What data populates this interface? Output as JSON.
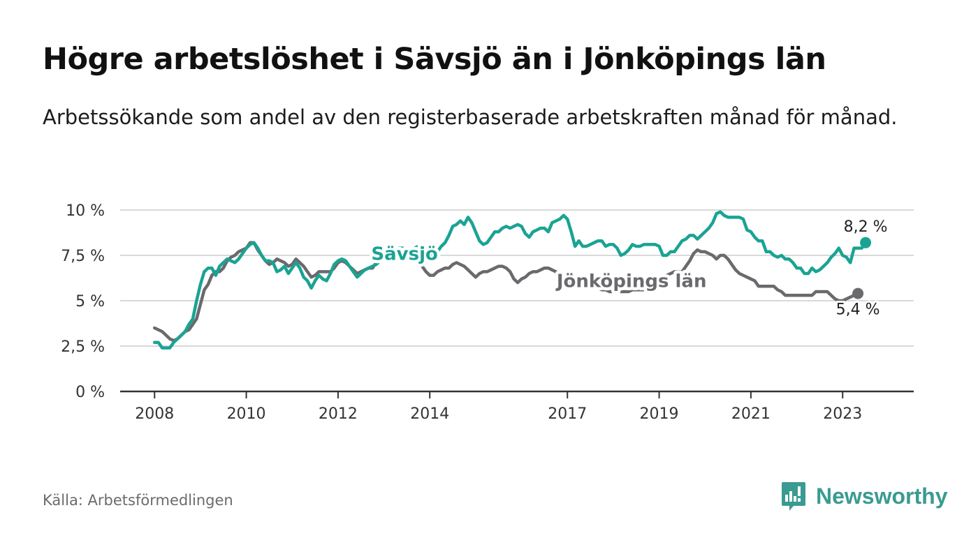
{
  "title": "Högre arbetslöshet i Sävsjö än i Jönköpings län",
  "subtitle": "Arbetssökande som andel av den registerbaserade arbetskraften månad för månad.",
  "source": "Källa: Arbetsförmedlingen",
  "brand": "Newsworthy",
  "colors": {
    "savsjo": "#1aa393",
    "jonkoping": "#6a6a6e",
    "brand": "#3a9b92",
    "grid": "#d9d9d9",
    "axis": "#333333"
  },
  "chart_data": {
    "type": "line",
    "ylim": [
      0,
      10
    ],
    "y_ticks": [
      0,
      2.5,
      5,
      7.5,
      10
    ],
    "y_tick_labels": [
      "0 %",
      "2,5 %",
      "5 %",
      "7,5 %",
      "10 %"
    ],
    "x_ticks": [
      2008,
      2010,
      2012,
      2014,
      2017,
      2019,
      2021,
      2023
    ],
    "x_tick_labels": [
      "2008",
      "2010",
      "2012",
      "2014",
      "2017",
      "2019",
      "2021",
      "2023"
    ],
    "xlim": [
      2007.25,
      2024.55
    ],
    "x_start": 2008.0,
    "x_step": 0.0833333,
    "series": [
      {
        "name": "Sävsjö",
        "label": "Sävsjö",
        "end_label": "8,2 %",
        "values": [
          2.7,
          2.7,
          2.4,
          2.4,
          2.4,
          2.7,
          2.9,
          3.1,
          3.3,
          3.7,
          4.0,
          5.0,
          5.9,
          6.6,
          6.8,
          6.8,
          6.4,
          6.9,
          7.1,
          7.3,
          7.2,
          7.1,
          7.3,
          7.6,
          7.9,
          8.1,
          8.2,
          7.9,
          7.5,
          7.2,
          7.2,
          7.1,
          6.6,
          6.7,
          6.9,
          6.5,
          6.8,
          7.1,
          6.8,
          6.3,
          6.1,
          5.7,
          6.1,
          6.4,
          6.2,
          6.1,
          6.5,
          7.0,
          7.2,
          7.3,
          7.2,
          6.9,
          6.6,
          6.3,
          6.5,
          6.7,
          6.8,
          6.9,
          7.0,
          7.2,
          7.4,
          7.6,
          7.7,
          7.8,
          7.9,
          7.9,
          7.7,
          7.7,
          7.9,
          8.0,
          7.9,
          7.7,
          7.6,
          7.3,
          7.7,
          8.0,
          8.2,
          8.6,
          9.1,
          9.2,
          9.4,
          9.2,
          9.6,
          9.3,
          8.8,
          8.3,
          8.1,
          8.2,
          8.5,
          8.8,
          8.8,
          9.0,
          9.1,
          9.0,
          9.1,
          9.2,
          9.1,
          8.7,
          8.5,
          8.8,
          8.9,
          9.0,
          9.0,
          8.8,
          9.3,
          9.4,
          9.5,
          9.7,
          9.5,
          8.8,
          8.0,
          8.3,
          8.0,
          8.0,
          8.1,
          8.2,
          8.3,
          8.3,
          8.0,
          8.1,
          8.1,
          7.9,
          7.5,
          7.6,
          7.8,
          8.1,
          8.0,
          8.0,
          8.1,
          8.1,
          8.1,
          8.1,
          8.0,
          7.5,
          7.5,
          7.7,
          7.7,
          8.0,
          8.3,
          8.4,
          8.6,
          8.6,
          8.4,
          8.6,
          8.8,
          9.0,
          9.3,
          9.8,
          9.9,
          9.7,
          9.6,
          9.6,
          9.6,
          9.6,
          9.5,
          8.9,
          8.8,
          8.5,
          8.3,
          8.3,
          7.7,
          7.7,
          7.5,
          7.4,
          7.5,
          7.3,
          7.3,
          7.1,
          6.8,
          6.8,
          6.5,
          6.5,
          6.8,
          6.6,
          6.7,
          6.9,
          7.1,
          7.4,
          7.6,
          7.9,
          7.5,
          7.4,
          7.1,
          7.9,
          7.9,
          7.9,
          8.2
        ]
      },
      {
        "name": "Jönköpings län",
        "label": "Jönköpings län",
        "end_label": "5,4 %",
        "values": [
          3.5,
          3.4,
          3.3,
          3.1,
          2.9,
          2.8,
          2.9,
          3.1,
          3.3,
          3.4,
          3.7,
          4.0,
          4.8,
          5.6,
          5.9,
          6.4,
          6.6,
          6.6,
          6.8,
          7.2,
          7.4,
          7.5,
          7.7,
          7.8,
          7.9,
          8.2,
          8.2,
          7.8,
          7.5,
          7.2,
          7.0,
          7.1,
          7.3,
          7.2,
          7.1,
          6.9,
          7.0,
          7.3,
          7.1,
          6.9,
          6.6,
          6.3,
          6.4,
          6.6,
          6.6,
          6.6,
          6.6,
          6.8,
          7.1,
          7.2,
          7.1,
          6.9,
          6.7,
          6.5,
          6.6,
          6.7,
          6.8,
          6.8,
          7.1,
          7.3,
          7.5,
          7.8,
          7.9,
          7.9,
          7.8,
          7.7,
          7.6,
          7.6,
          7.5,
          7.3,
          6.9,
          6.6,
          6.4,
          6.4,
          6.6,
          6.7,
          6.8,
          6.8,
          7.0,
          7.1,
          7.0,
          6.9,
          6.7,
          6.5,
          6.3,
          6.5,
          6.6,
          6.6,
          6.7,
          6.8,
          6.9,
          6.9,
          6.8,
          6.6,
          6.2,
          6.0,
          6.2,
          6.3,
          6.5,
          6.6,
          6.6,
          6.7,
          6.8,
          6.8,
          6.7,
          6.6,
          6.2,
          6.2,
          6.1,
          6.0,
          5.9,
          5.8,
          5.8,
          5.9,
          5.9,
          5.9,
          5.7,
          5.6,
          5.6,
          5.5,
          5.5,
          5.5,
          5.5,
          5.5,
          5.5,
          5.6,
          5.6,
          5.6,
          5.6,
          5.7,
          5.8,
          5.9,
          6.1,
          6.3,
          6.4,
          6.5,
          6.6,
          6.6,
          6.6,
          6.9,
          7.2,
          7.6,
          7.8,
          7.7,
          7.7,
          7.6,
          7.5,
          7.3,
          7.5,
          7.5,
          7.3,
          7.0,
          6.7,
          6.5,
          6.4,
          6.3,
          6.2,
          6.1,
          5.8,
          5.8,
          5.8,
          5.8,
          5.8,
          5.6,
          5.5,
          5.3,
          5.3,
          5.3,
          5.3,
          5.3,
          5.3,
          5.3,
          5.3,
          5.5,
          5.5,
          5.5,
          5.5,
          5.3,
          5.1,
          5.0,
          5.0,
          5.1,
          5.2,
          5.3,
          5.4
        ]
      }
    ]
  }
}
